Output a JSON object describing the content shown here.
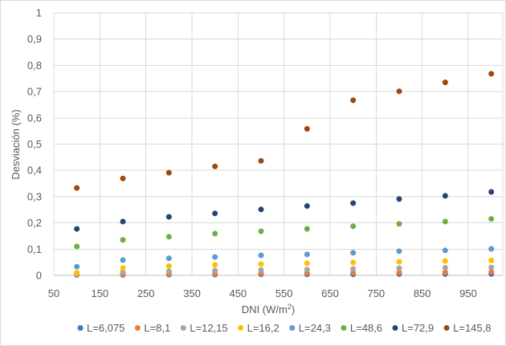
{
  "chart_data": {
    "type": "scatter",
    "title": "",
    "xlabel": "DNI (W/m",
    "xlabel_sup": "2",
    "xlabel_end": ")",
    "ylabel": "Desviación (%)",
    "xlim": [
      50,
      1025
    ],
    "ylim": [
      0,
      1
    ],
    "x_ticks": [
      50,
      150,
      250,
      350,
      450,
      550,
      650,
      750,
      850,
      950
    ],
    "x_tick_labels": [
      "50",
      "150",
      "250",
      "350",
      "450",
      "550",
      "650",
      "750",
      "850",
      "950"
    ],
    "y_ticks": [
      0,
      0.1,
      0.2,
      0.3,
      0.4,
      0.5,
      0.6,
      0.7,
      0.8,
      0.9,
      1
    ],
    "y_tick_labels": [
      "0",
      "0,1",
      "0,2",
      "0,3",
      "0,4",
      "0,5",
      "0,6",
      "0,7",
      "0,8",
      "0,9",
      "1"
    ],
    "grid": true,
    "legend_position": "bottom",
    "x": [
      100,
      200,
      300,
      400,
      500,
      600,
      700,
      800,
      900,
      1000
    ],
    "series": [
      {
        "name": "L=6,075",
        "color": "#4472C4",
        "values": [
          0.002,
          0.002,
          0.003,
          0.003,
          0.004,
          0.004,
          0.004,
          0.005,
          0.005,
          0.005
        ]
      },
      {
        "name": "L=8,1",
        "color": "#ED7D31",
        "values": [
          0.004,
          0.005,
          0.006,
          0.007,
          0.008,
          0.009,
          0.01,
          0.011,
          0.012,
          0.013
        ]
      },
      {
        "name": "L=12,15",
        "color": "#A5A5A5",
        "values": [
          0.007,
          0.012,
          0.015,
          0.018,
          0.02,
          0.022,
          0.025,
          0.027,
          0.029,
          0.03
        ]
      },
      {
        "name": "L=16,2",
        "color": "#FFC000",
        "values": [
          0.01,
          0.028,
          0.035,
          0.04,
          0.043,
          0.046,
          0.049,
          0.052,
          0.055,
          0.057
        ]
      },
      {
        "name": "L=24,3",
        "color": "#5B9BD5",
        "values": [
          0.033,
          0.058,
          0.065,
          0.07,
          0.076,
          0.08,
          0.086,
          0.092,
          0.095,
          0.101
        ]
      },
      {
        "name": "L=48,6",
        "color": "#70AD47",
        "values": [
          0.11,
          0.135,
          0.147,
          0.159,
          0.168,
          0.177,
          0.187,
          0.196,
          0.205,
          0.215
        ]
      },
      {
        "name": "L=72,9",
        "color": "#264478",
        "values": [
          0.177,
          0.205,
          0.223,
          0.236,
          0.251,
          0.264,
          0.275,
          0.291,
          0.303,
          0.318
        ]
      },
      {
        "name": "L=145,8",
        "color": "#9E480E",
        "values": [
          0.333,
          0.369,
          0.391,
          0.415,
          0.436,
          0.558,
          0.667,
          0.701,
          0.735,
          0.768
        ]
      }
    ]
  }
}
